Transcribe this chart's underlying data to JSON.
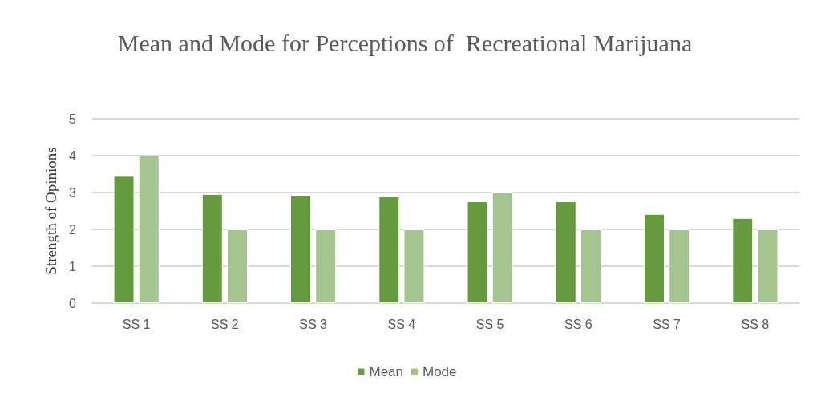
{
  "chart_data": {
    "type": "bar",
    "title": "Mean and Mode for Perceptions of  Recreational Marijuana",
    "ylabel": "Strength of Opinions",
    "categories": [
      "SS 1",
      "SS 2",
      "SS 3",
      "SS 4",
      "SS 5",
      "SS 6",
      "SS 7",
      "SS 8"
    ],
    "series": [
      {
        "name": "Mean",
        "color": "#669a3e",
        "values": [
          3.45,
          2.96,
          2.92,
          2.89,
          2.76,
          2.76,
          2.42,
          2.31
        ]
      },
      {
        "name": "Mode",
        "color": "#a4c490",
        "values": [
          4,
          2,
          2,
          2,
          3,
          2,
          2,
          2
        ]
      }
    ],
    "ylim": [
      0,
      5
    ],
    "yticks": [
      0,
      1,
      2,
      3,
      4,
      5
    ],
    "grid": "y",
    "legend": "bottom"
  }
}
